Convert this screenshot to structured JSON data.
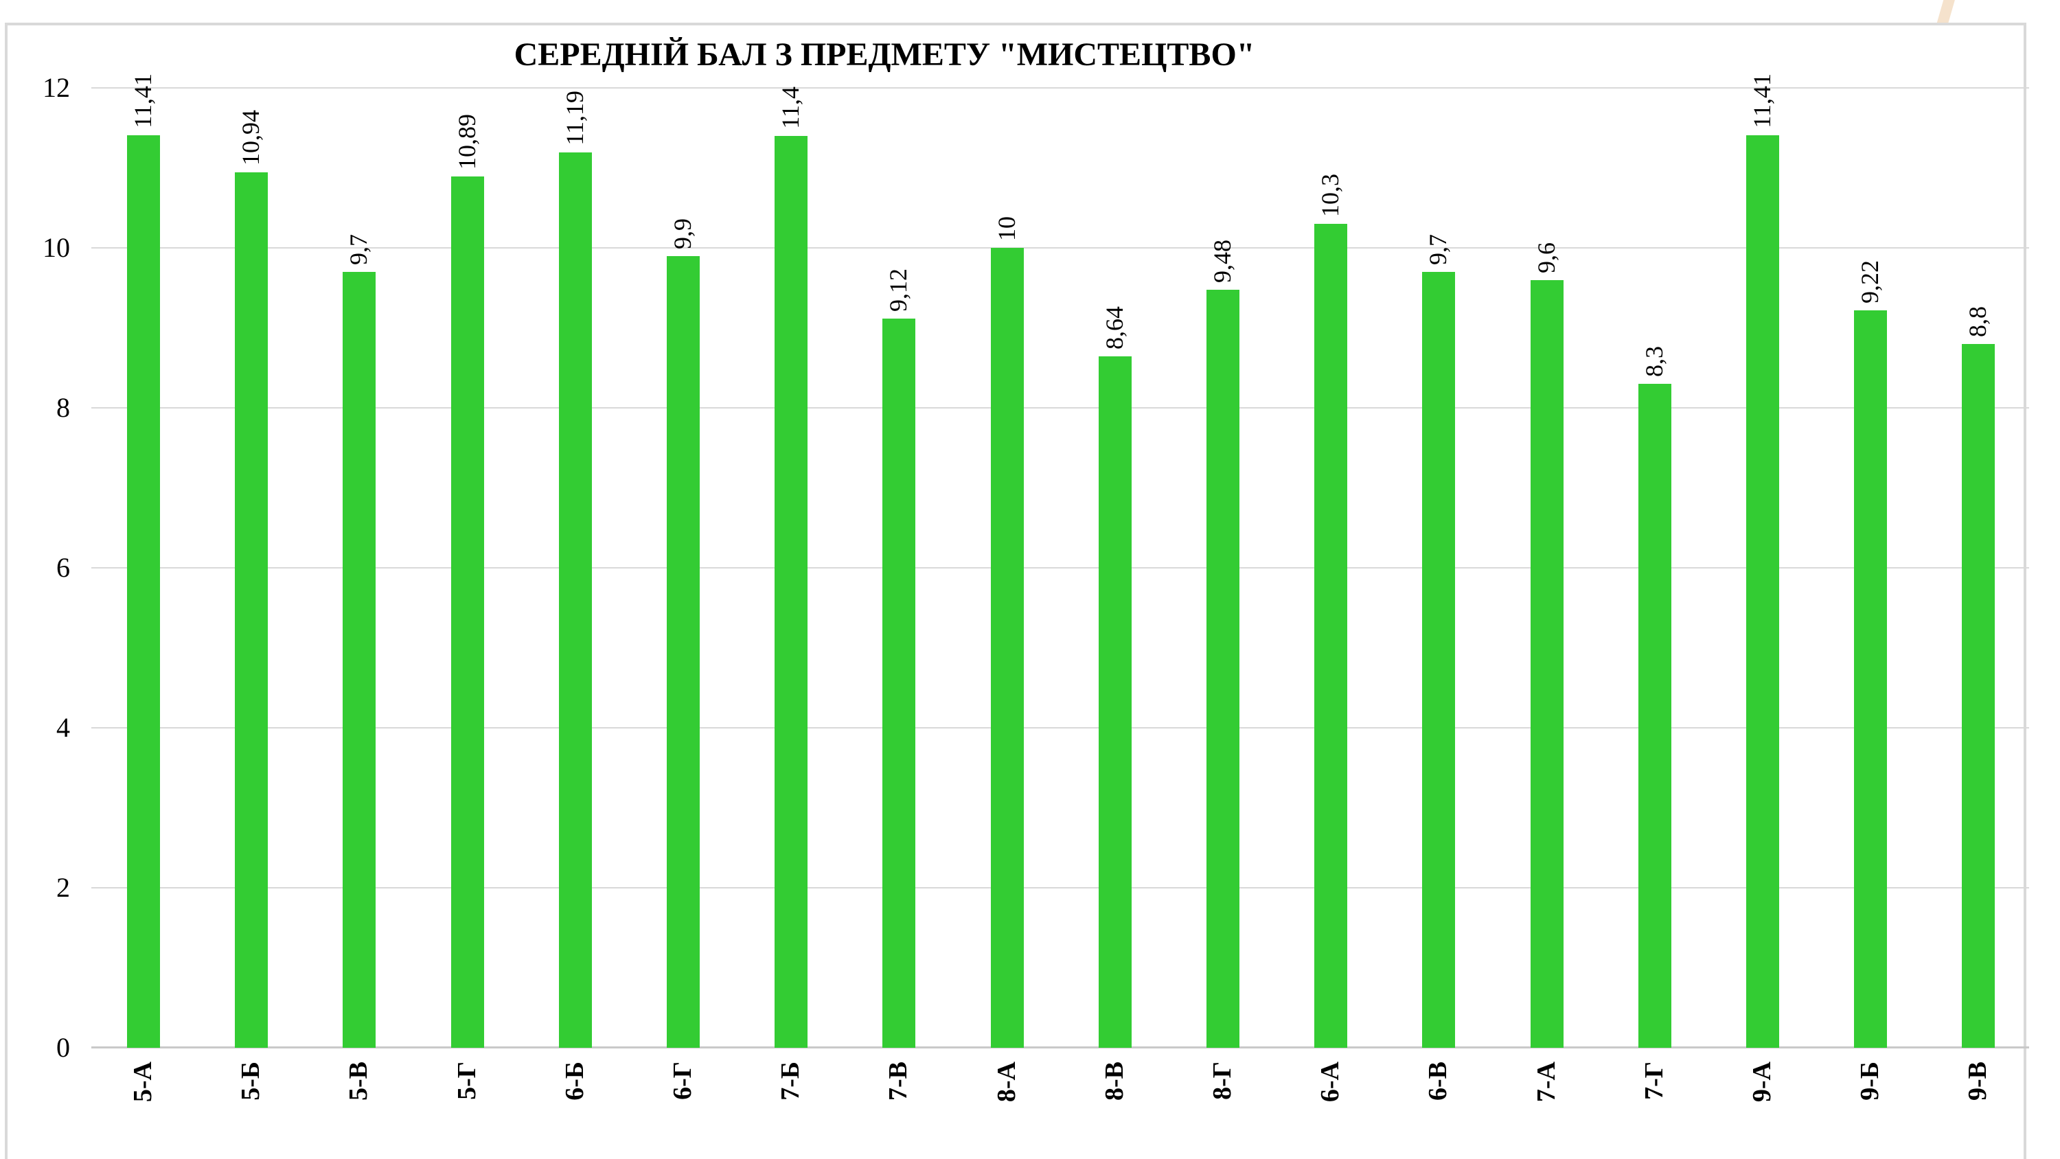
{
  "chart_data": {
    "type": "bar",
    "title": "СЕРЕДНІЙ БАЛ З ПРЕДМЕТУ \"МИСТЕЦТВО\"",
    "xlabel": "",
    "ylabel": "",
    "categories": [
      "5-А",
      "5-Б",
      "5-В",
      "5-Г",
      "6-Б",
      "6-Г",
      "7-Б",
      "7-В",
      "8-А",
      "8-В",
      "8-Г",
      "6-А",
      "6-В",
      "7-А",
      "7-Г",
      "9-А",
      "9-Б",
      "9-В"
    ],
    "values": [
      11.41,
      10.94,
      9.7,
      10.89,
      11.19,
      9.9,
      11.4,
      9.12,
      10,
      8.64,
      9.48,
      10.3,
      9.7,
      9.6,
      8.3,
      11.41,
      9.22,
      8.8
    ],
    "value_labels": [
      "11,41",
      "10,94",
      "9,7",
      "10,89",
      "11,19",
      "9,9",
      "11,4",
      "9,12",
      "10",
      "8,64",
      "9,48",
      "10,3",
      "9,7",
      "9,6",
      "8,3",
      "11,41",
      "9,22",
      "8,8"
    ],
    "ylim": [
      0,
      12
    ],
    "yticks": [
      0,
      2,
      4,
      6,
      8,
      10,
      12
    ],
    "ytick_labels": [
      "0",
      "2",
      "4",
      "6",
      "8",
      "10",
      "12"
    ],
    "grid": true,
    "legend_position": "none",
    "bar_color": "#33cc33",
    "grid_color": "#d9d9d9",
    "axis_line_color": "#c9c9c9",
    "label_color": "#000000"
  },
  "frame": {
    "border_color": "#d9d9d9"
  },
  "decor": {
    "stripe_color": "#f5e2cc"
  }
}
